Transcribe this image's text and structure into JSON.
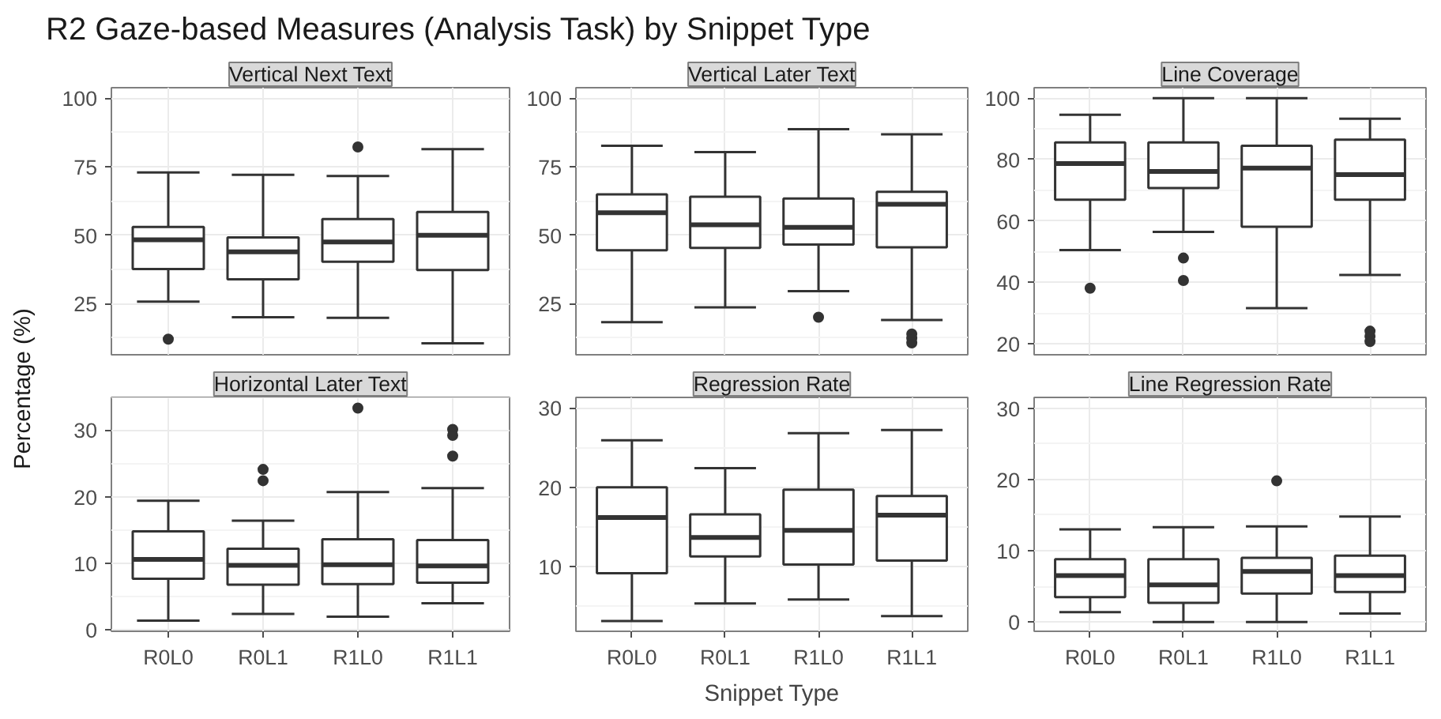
{
  "chart_data": [
    {
      "type": "box",
      "title": "Vertical Next Text",
      "annotations": [
        "R2 Gaze-based Measures (Analysis Task) by Snippet Type"
      ],
      "categories": [
        null,
        null,
        null,
        null
      ],
      "ylim": [
        6.4,
        103.8
      ],
      "yticks": [
        25,
        50,
        75,
        100
      ],
      "grid": true,
      "boxes": [
        {
          "low": 25.8,
          "q1": 37.7,
          "median": 48.3,
          "q3": 53,
          "high": 72.9,
          "outliers": [
            12.1
          ]
        },
        {
          "low": 20.1,
          "q1": 33.9,
          "median": 43.9,
          "q3": 49.2,
          "high": 72
        },
        {
          "low": 19.9,
          "q1": 40.3,
          "median": 47.5,
          "q3": 55.9,
          "high": 71.6,
          "outliers": [
            82.2
          ]
        },
        {
          "low": 10.6,
          "q1": 37.3,
          "median": 50,
          "q3": 58.5,
          "high": 81.4
        }
      ]
    },
    {
      "type": "box",
      "title": "Vertical Later Text",
      "categories": [
        null,
        null,
        null,
        null
      ],
      "ylim": [
        6.4,
        103.8
      ],
      "yticks": [
        25,
        50,
        75,
        100
      ],
      "grid": true,
      "boxes": [
        {
          "low": 18.3,
          "q1": 44.5,
          "median": 58.2,
          "q3": 64.9,
          "high": 82.6
        },
        {
          "low": 23.7,
          "q1": 45.4,
          "median": 53.8,
          "q3": 64,
          "high": 80.3
        },
        {
          "low": 29.6,
          "q1": 46.6,
          "median": 52.9,
          "q3": 63.4,
          "high": 88.7,
          "outliers": [
            20.1
          ]
        },
        {
          "low": 19.1,
          "q1": 45.6,
          "median": 61.3,
          "q3": 65.8,
          "high": 86.8,
          "outliers": [
            14,
            12.4,
            10.7
          ]
        }
      ]
    },
    {
      "type": "box",
      "title": "Line Coverage",
      "categories": [
        null,
        null,
        null,
        null
      ],
      "ylim": [
        16.4,
        103.4
      ],
      "yticks": [
        20,
        40,
        60,
        80,
        100
      ],
      "grid": true,
      "boxes": [
        {
          "low": 50.5,
          "q1": 66.9,
          "median": 78.7,
          "q3": 85.6,
          "high": 94.6,
          "outliers": [
            38.1
          ]
        },
        {
          "low": 56.4,
          "q1": 70.7,
          "median": 76.1,
          "q3": 85.6,
          "high": 100,
          "outliers": [
            47.9,
            40.6
          ]
        },
        {
          "low": 31.6,
          "q1": 58.1,
          "median": 77.2,
          "q3": 84.5,
          "high": 100
        },
        {
          "low": 42.4,
          "q1": 66.9,
          "median": 75.1,
          "q3": 86.5,
          "high": 93.3,
          "outliers": [
            24.1,
            22.4,
            20.7
          ]
        }
      ]
    },
    {
      "type": "box",
      "title": "Horizontal Later Text",
      "ylabel": "Percentage (%)",
      "categories": [
        "R0L0",
        "R0L1",
        "R1L0",
        "R1L1"
      ],
      "ylim": [
        -0.2,
        34.9
      ],
      "yticks": [
        0,
        10,
        20,
        30
      ],
      "grid": true,
      "boxes": [
        {
          "low": 1.4,
          "q1": 7.7,
          "median": 10.6,
          "q3": 14.8,
          "high": 19.4
        },
        {
          "low": 2.4,
          "q1": 6.8,
          "median": 9.7,
          "q3": 12.2,
          "high": 16.4,
          "outliers": [
            24.1,
            22.4
          ]
        },
        {
          "low": 2,
          "q1": 6.9,
          "median": 9.8,
          "q3": 13.6,
          "high": 20.7,
          "outliers": [
            33.3
          ]
        },
        {
          "low": 4,
          "q1": 7.1,
          "median": 9.6,
          "q3": 13.5,
          "high": 21.3,
          "outliers": [
            30.1,
            29.2,
            26.1
          ]
        }
      ]
    },
    {
      "type": "box",
      "title": "Regression Rate",
      "xlabel": "Snippet Type",
      "categories": [
        "R0L0",
        "R0L1",
        "R1L0",
        "R1L1"
      ],
      "ylim": [
        1.9,
        31.3
      ],
      "yticks": [
        10,
        20,
        30
      ],
      "grid": true,
      "boxes": [
        {
          "low": 3.2,
          "q1": 9.2,
          "median": 16.2,
          "q3": 20,
          "high": 25.9
        },
        {
          "low": 5.4,
          "q1": 11.3,
          "median": 13.7,
          "q3": 16.6,
          "high": 22.4
        },
        {
          "low": 5.9,
          "q1": 10.3,
          "median": 14.6,
          "q3": 19.7,
          "high": 26.8
        },
        {
          "low": 3.8,
          "q1": 10.8,
          "median": 16.5,
          "q3": 18.9,
          "high": 27.2
        }
      ]
    },
    {
      "type": "box",
      "title": "Line Regression Rate",
      "categories": [
        "R0L0",
        "R0L1",
        "R1L0",
        "R1L1"
      ],
      "ylim": [
        -1.3,
        31.5
      ],
      "yticks": [
        0,
        10,
        20,
        30
      ],
      "grid": true,
      "boxes": [
        {
          "low": 1.4,
          "q1": 3.5,
          "median": 6.5,
          "q3": 8.8,
          "high": 13
        },
        {
          "low": 0,
          "q1": 2.7,
          "median": 5.2,
          "q3": 8.8,
          "high": 13.3
        },
        {
          "low": 0,
          "q1": 4,
          "median": 7.1,
          "q3": 9,
          "high": 13.4,
          "outliers": [
            19.8
          ]
        },
        {
          "low": 1.2,
          "q1": 4.2,
          "median": 6.5,
          "q3": 9.3,
          "high": 14.8
        }
      ]
    }
  ]
}
